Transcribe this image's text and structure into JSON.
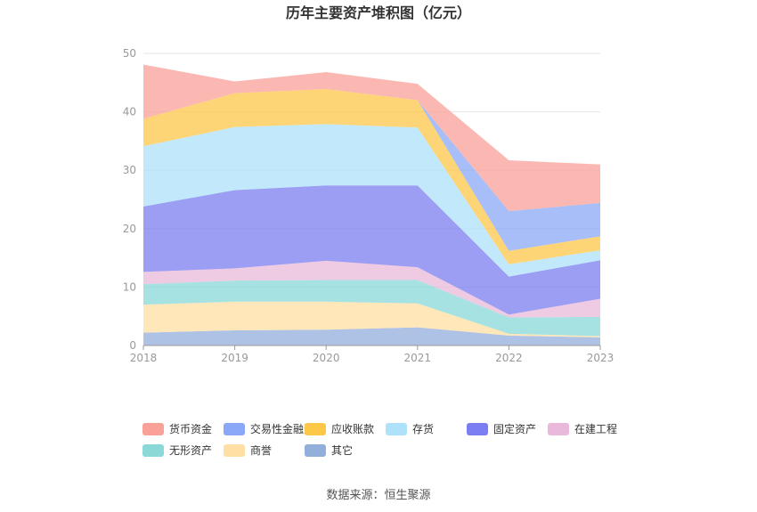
{
  "chart_data": {
    "type": "area",
    "title": "历年主要资产堆积图（亿元）",
    "x": [
      "2018",
      "2019",
      "2020",
      "2021",
      "2022",
      "2023"
    ],
    "ylim": [
      0,
      50
    ],
    "yticks": [
      0,
      10,
      20,
      30,
      40,
      50
    ],
    "grid": true,
    "legend_position": "bottom",
    "series": [
      {
        "name": "其它",
        "color": "#92aedb",
        "values": [
          2.2,
          2.6,
          2.7,
          3.1,
          1.7,
          1.4
        ]
      },
      {
        "name": "商誉",
        "color": "#ffdfa3",
        "values": [
          4.8,
          4.9,
          4.8,
          4.1,
          0.3,
          0.2
        ]
      },
      {
        "name": "无形资产",
        "color": "#8ad8d8",
        "values": [
          3.5,
          3.6,
          3.7,
          4.0,
          2.8,
          3.3
        ]
      },
      {
        "name": "在建工程",
        "color": "#eab8da",
        "values": [
          2.1,
          2.1,
          3.3,
          2.2,
          0.5,
          3.1
        ]
      },
      {
        "name": "固定资产",
        "color": "#7b7ef0",
        "values": [
          11.2,
          13.4,
          12.9,
          14.0,
          6.5,
          6.6
        ]
      },
      {
        "name": "存货",
        "color": "#aee1fa",
        "values": [
          10.3,
          10.8,
          10.5,
          9.9,
          2.1,
          1.7
        ]
      },
      {
        "name": "应收账款",
        "color": "#fdc748",
        "values": [
          4.7,
          5.8,
          6.0,
          4.7,
          2.3,
          2.4
        ]
      },
      {
        "name": "交易性金融资产",
        "color": "#8aa8f7",
        "values": [
          0,
          0,
          0,
          0,
          6.8,
          5.7
        ]
      },
      {
        "name": "货币资金",
        "color": "#f9a098",
        "values": [
          9.3,
          2.0,
          2.9,
          2.8,
          8.7,
          6.6
        ]
      }
    ],
    "legend": [
      "货币资金",
      "交易性金融资产",
      "应收账款",
      "存货",
      "固定资产",
      "在建工程",
      "无形资产",
      "商誉",
      "其它"
    ]
  },
  "source": "数据来源：恒生聚源"
}
